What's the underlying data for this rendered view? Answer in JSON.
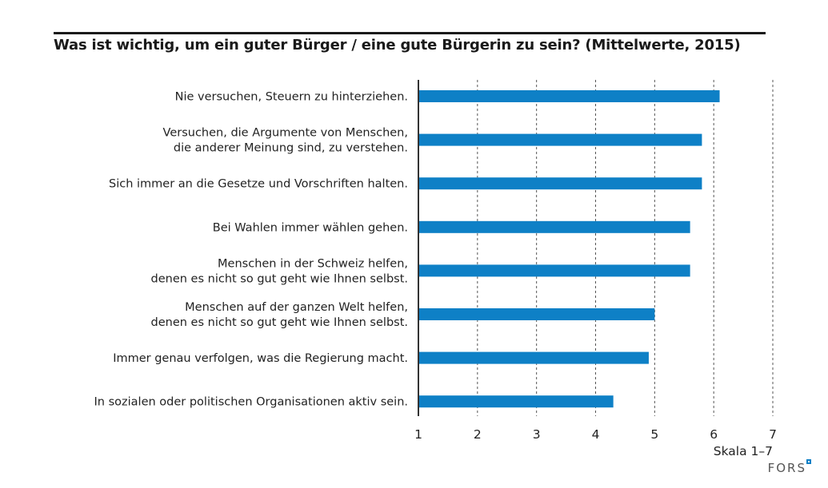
{
  "chart_data": {
    "type": "bar",
    "orientation": "horizontal",
    "title": "Was ist wichtig, um ein guter Bürger / eine gute Bürgerin zu sein? (Mittelwerte, 2015)",
    "categories": [
      [
        "Nie versuchen, Steuern zu hinterziehen."
      ],
      [
        "Versuchen, die Argumente von Menschen,",
        "die anderer Meinung sind, zu verstehen."
      ],
      [
        "Sich immer an die Gesetze und Vorschriften halten."
      ],
      [
        "Bei Wahlen immer wählen gehen."
      ],
      [
        "Menschen in der Schweiz helfen,",
        "denen es nicht so gut geht wie Ihnen selbst."
      ],
      [
        "Menschen auf der ganzen Welt helfen,",
        "denen es nicht so gut geht wie Ihnen selbst."
      ],
      [
        "Immer genau verfolgen, was die Regierung macht."
      ],
      [
        "In sozialen oder politischen Organisationen aktiv sein."
      ]
    ],
    "values": [
      6.1,
      5.8,
      5.8,
      5.6,
      5.6,
      5.0,
      4.9,
      4.3
    ],
    "xlabel": "Skala 1–7",
    "ylabel": "",
    "xlim": [
      1,
      7
    ],
    "xticks": [
      "1",
      "2",
      "3",
      "4",
      "5",
      "6",
      "7"
    ],
    "grid": "vertical dashed",
    "legend": "none",
    "bar_color": "#0e80c6"
  },
  "title_text": "Was ist wichtig, um ein guter Bürger / eine gute Bürgerin zu sein? (Mittelwerte, 2015)",
  "footer": {
    "scale_note": "Skala 1–7",
    "brand": "FORS",
    "brand_accent_color": "#0e80c6"
  }
}
